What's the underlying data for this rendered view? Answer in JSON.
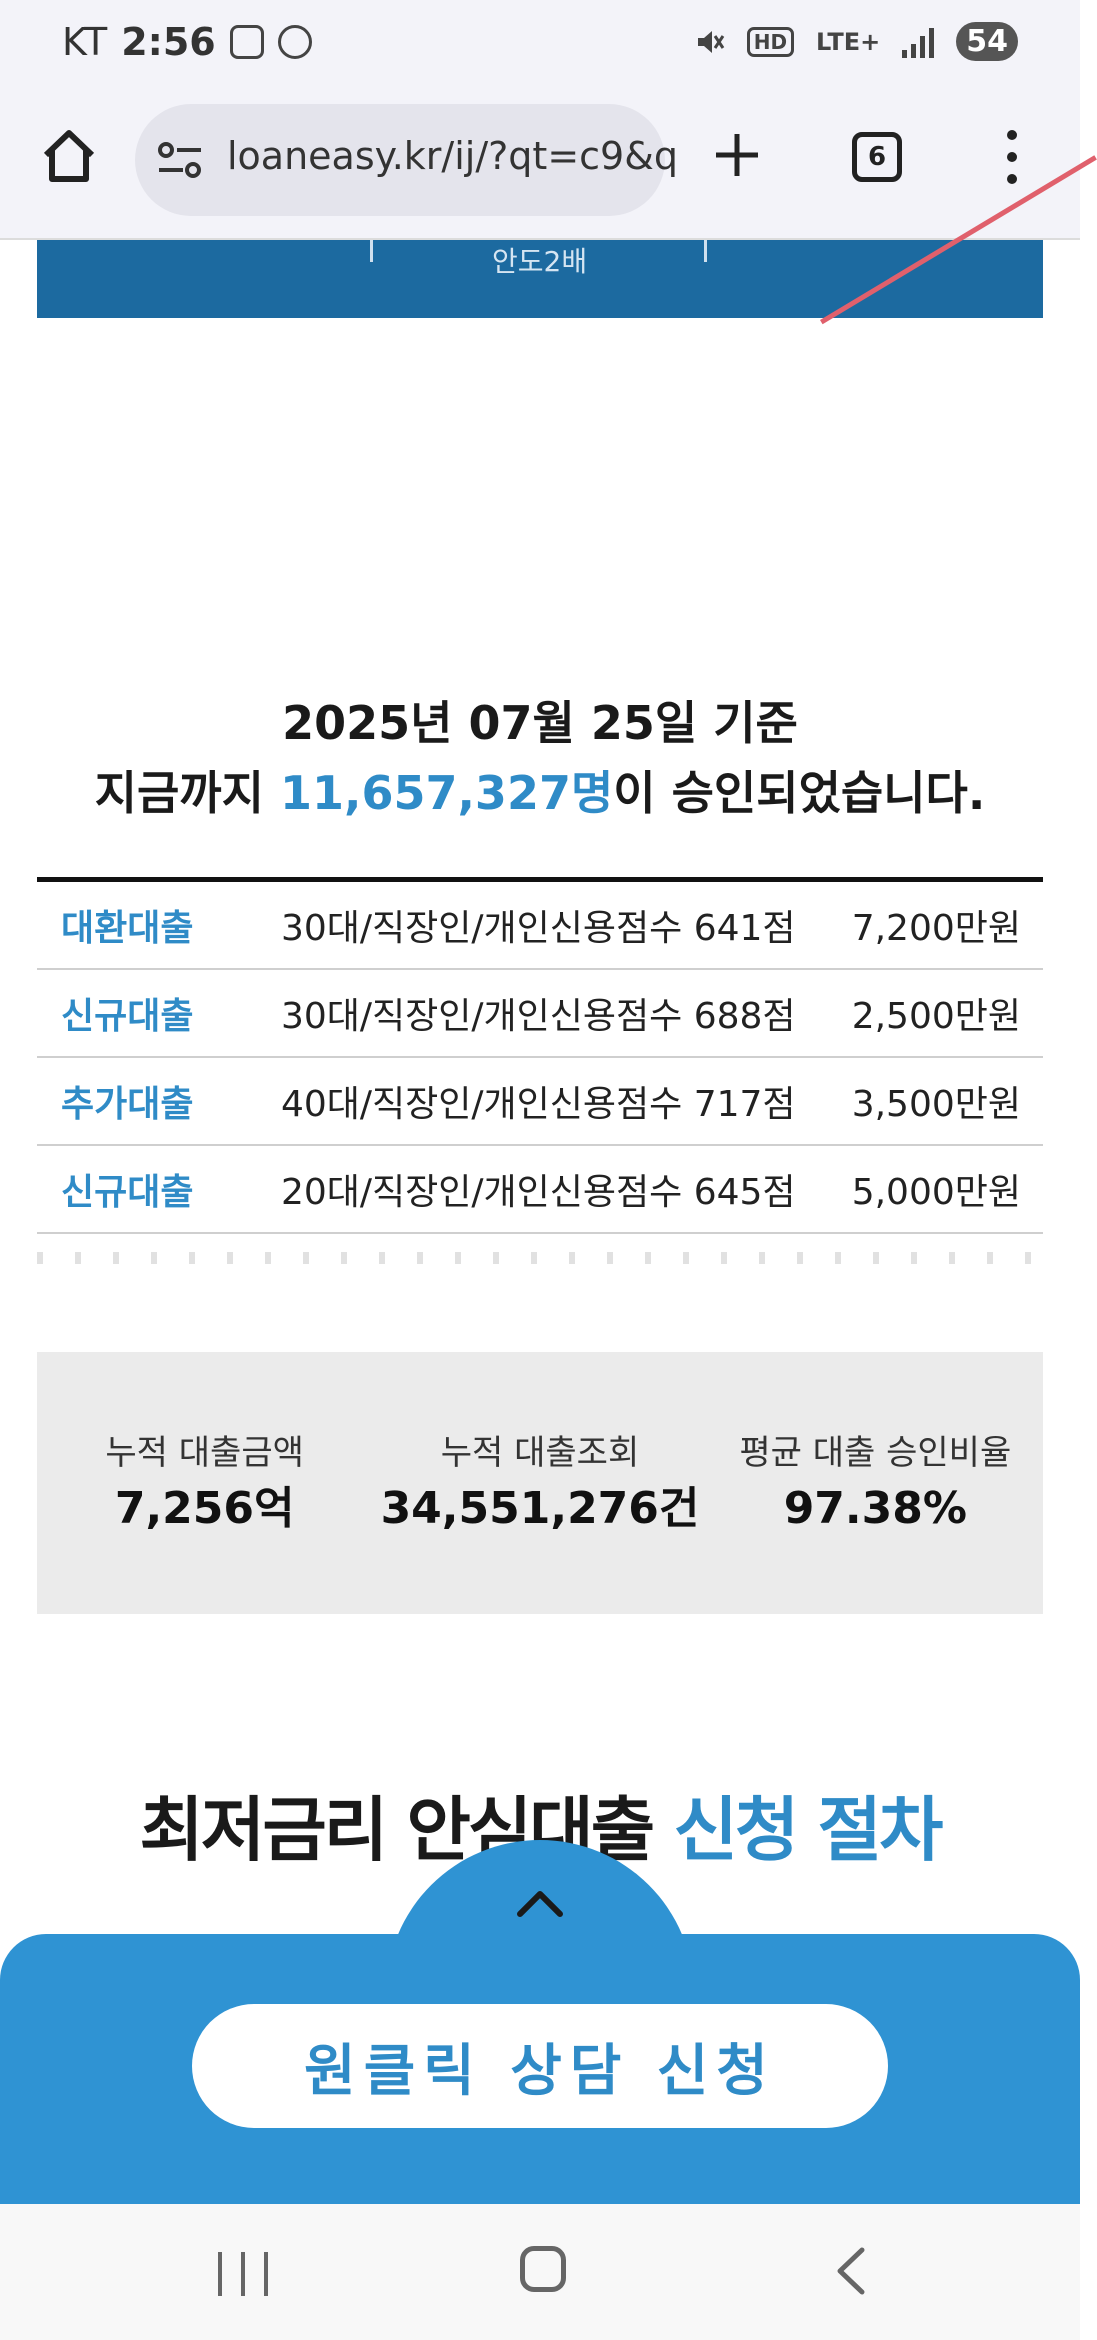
{
  "status_bar": {
    "carrier": "KT",
    "time": "2:56",
    "network": "LTE+",
    "hd_badge": "HD",
    "battery": "54",
    "icons": [
      "screenshot-icon",
      "face-icon",
      "mute-icon",
      "hd-voice-icon",
      "lte-icon",
      "signal-icon",
      "battery-icon"
    ]
  },
  "browser": {
    "url": "loaneasy.kr/ij/?qt=c9&q",
    "tab_count": "6",
    "icons": [
      "home-icon",
      "site-settings-icon",
      "new-tab-plus-icon",
      "tab-switcher-icon",
      "more-menu-icon"
    ]
  },
  "banner": {
    "text": "안도2배"
  },
  "approval": {
    "date_line": "2025년 07월 25일 기준",
    "line_prefix": "지금까지 ",
    "count": "11,657,327명",
    "line_suffix": "이 승인되었습니다."
  },
  "loans": [
    {
      "type": "대환대출",
      "desc": "30대/직장인/개인신용점수 641점",
      "amount": "7,200만원"
    },
    {
      "type": "신규대출",
      "desc": "30대/직장인/개인신용점수 688점",
      "amount": "2,500만원"
    },
    {
      "type": "추가대출",
      "desc": "40대/직장인/개인신용점수 717점",
      "amount": "3,500만원"
    },
    {
      "type": "신규대출",
      "desc": "20대/직장인/개인신용점수 645점",
      "amount": "5,000만원"
    }
  ],
  "stats": [
    {
      "label": "누적 대출금액",
      "value": "7,256억"
    },
    {
      "label": "누적 대출조회",
      "value": "34,551,276건"
    },
    {
      "label": "평균 대출 승인비율",
      "value": "97.38%"
    }
  ],
  "procedure": {
    "title_prefix": "최저금리 안심대출 ",
    "title_highlight": "신청 절차"
  },
  "cta": {
    "button_label": "원클릭 상담 신청",
    "icon": "chevron-up-icon"
  },
  "colors": {
    "accent_blue": "#2f8bc7",
    "cta_panel": "#2f93d3",
    "banner_blue": "#1c6aa0",
    "stats_bg": "#ebebeb"
  }
}
